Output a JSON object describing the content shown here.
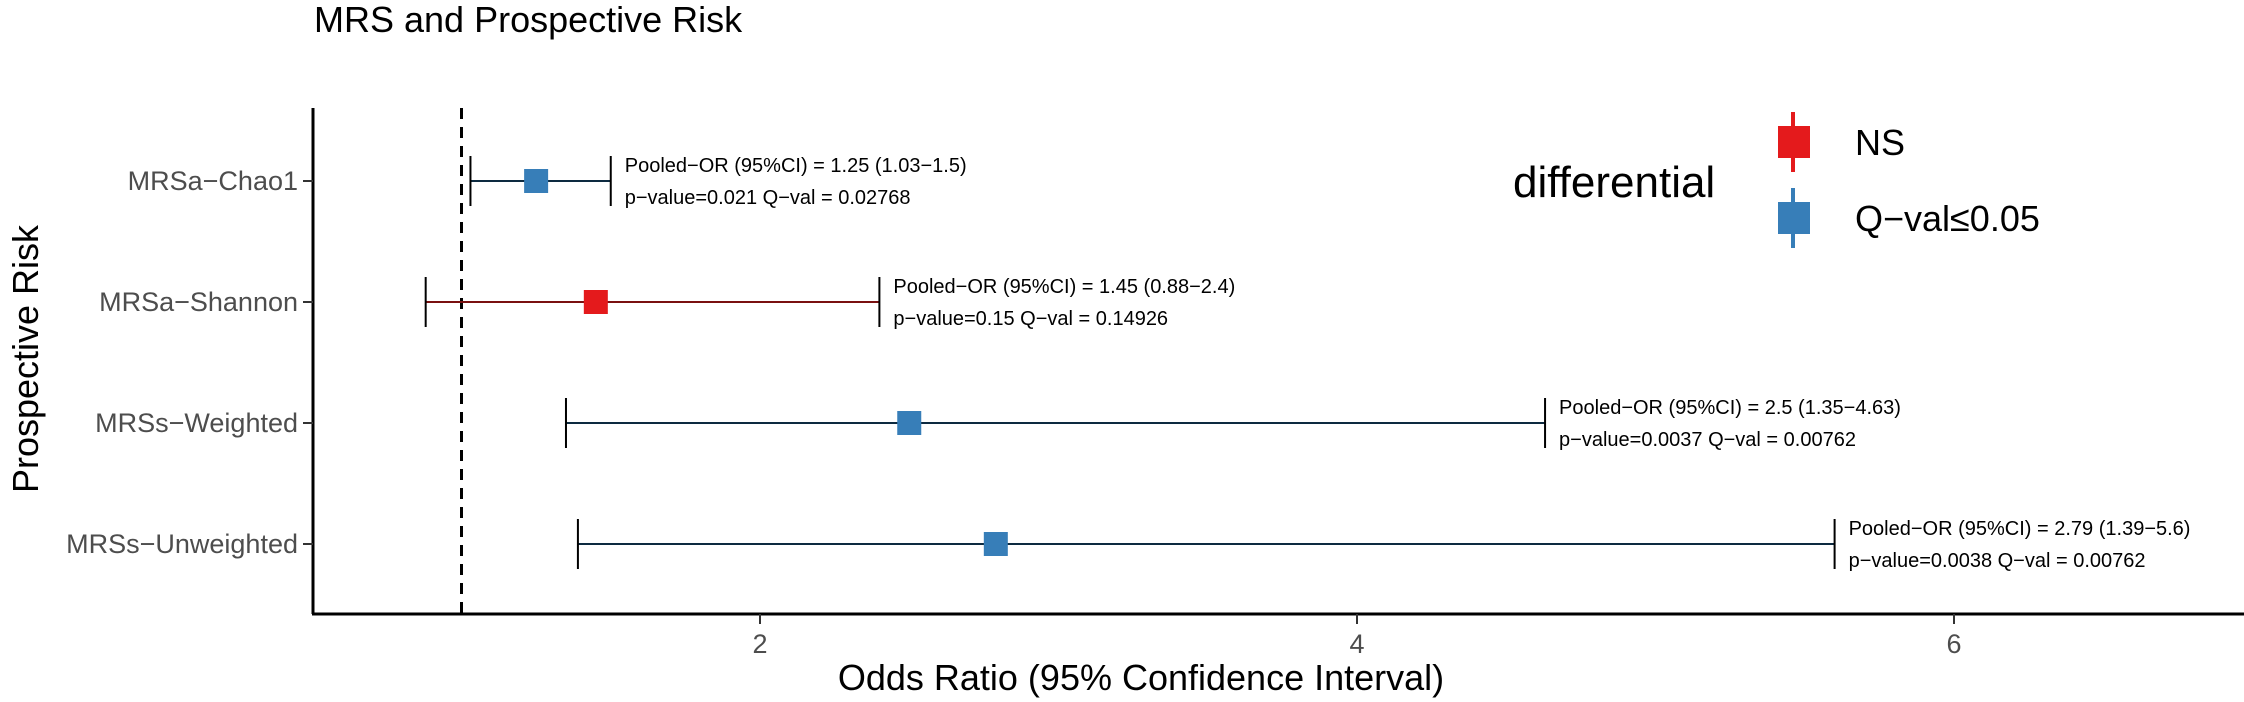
{
  "chart_data": {
    "type": "forest",
    "title": "MRS and Prospective Risk",
    "xlabel": "Odds Ratio (95% Confidence Interval)",
    "ylabel": "Prospective Risk",
    "xlim": [
      0.52,
      7.0
    ],
    "xticks": [
      "2",
      "4",
      "6"
    ],
    "reference_line": 1,
    "grid": false,
    "legend": {
      "title": "differential",
      "position": "top-right",
      "items": [
        {
          "label": "NS",
          "color": "#e41a1c"
        },
        {
          "label": "Q−val≤0.05",
          "color": "#377eb8"
        }
      ]
    },
    "rows": [
      {
        "label": "MRSa−Chao1",
        "or": 1.25,
        "lower": 1.03,
        "upper": 1.5,
        "group": "Q−val≤0.05",
        "annotation_1": "Pooled−OR (95%CI) = 1.25 (1.03−1.5)",
        "annotation_2": "p−value=0.021 Q−val = 0.02768"
      },
      {
        "label": "MRSa−Shannon",
        "or": 1.45,
        "lower": 0.88,
        "upper": 2.4,
        "group": "NS",
        "annotation_1": "Pooled−OR (95%CI) = 1.45 (0.88−2.4)",
        "annotation_2": "p−value=0.15 Q−val = 0.14926"
      },
      {
        "label": "MRSs−Weighted",
        "or": 2.5,
        "lower": 1.35,
        "upper": 4.63,
        "group": "Q−val≤0.05",
        "annotation_1": "Pooled−OR (95%CI) = 2.5 (1.35−4.63)",
        "annotation_2": "p−value=0.0037 Q−val = 0.00762"
      },
      {
        "label": "MRSs−Unweighted",
        "or": 2.79,
        "lower": 1.39,
        "upper": 5.6,
        "group": "Q−val≤0.05",
        "annotation_1": "Pooled−OR (95%CI) = 2.79 (1.39−5.6)",
        "annotation_2": "p−value=0.0038 Q−val = 0.00762"
      }
    ],
    "colors": {
      "NS": "#e41a1c",
      "Q−val≤0.05": "#377eb8",
      "line_NS": "#7a1010",
      "line_sig": "#0d2a40"
    }
  }
}
